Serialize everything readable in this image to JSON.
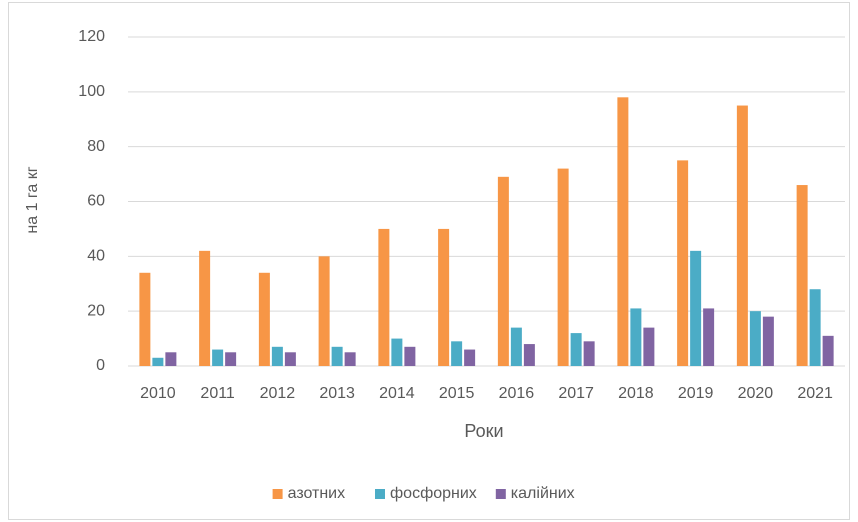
{
  "chart_data": {
    "type": "bar",
    "x_label": "Роки",
    "y_label": "на 1 га кг",
    "categories": [
      "2010",
      "2011",
      "2012",
      "2013",
      "2014",
      "2015",
      "2016",
      "2017",
      "2018",
      "2019",
      "2020",
      "2021"
    ],
    "series": [
      {
        "name": "азотних",
        "color": "#f79646",
        "values": [
          34,
          42,
          34,
          40,
          50,
          50,
          69,
          72,
          98,
          75,
          95,
          66
        ]
      },
      {
        "name": "фосфорних",
        "color": "#4bacc6",
        "values": [
          3,
          6,
          7,
          7,
          10,
          9,
          14,
          12,
          21,
          42,
          20,
          28
        ]
      },
      {
        "name": "калійних",
        "color": "#8064a2",
        "values": [
          5,
          5,
          5,
          5,
          7,
          6,
          8,
          9,
          14,
          21,
          18,
          11
        ]
      }
    ],
    "ylim": [
      0,
      120
    ],
    "yticks": [
      0,
      20,
      40,
      60,
      80,
      100,
      120
    ],
    "grid": true,
    "legend": "bottom"
  }
}
